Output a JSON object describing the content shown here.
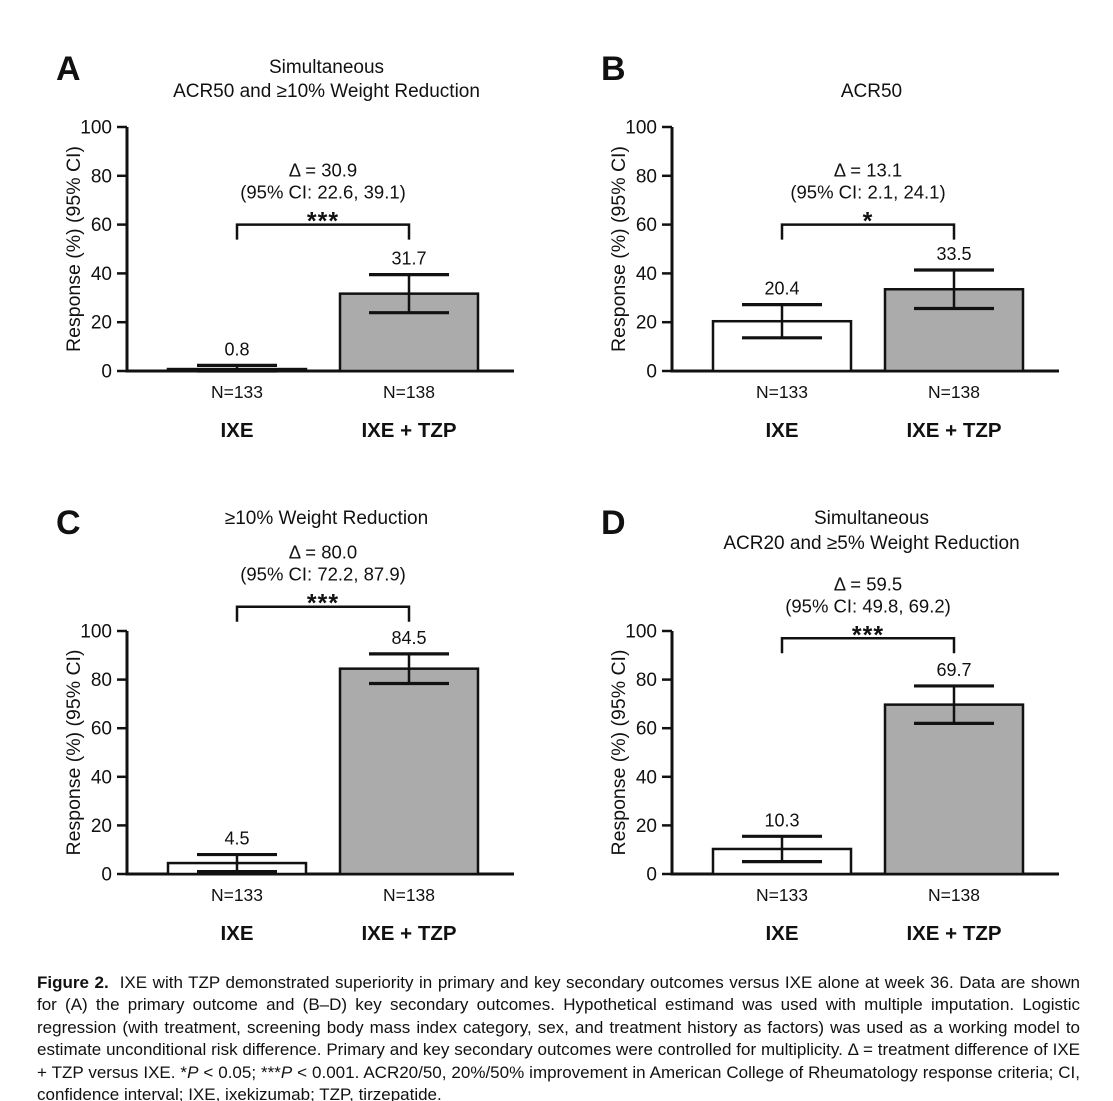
{
  "colors": {
    "ink": "#111111",
    "bar_gray": "#ababab",
    "bar_white": "#ffffff",
    "background": "#ffffff"
  },
  "chart_data": [
    {
      "panel": "A",
      "type": "bar",
      "title_lines": [
        "Simultaneous",
        "ACR50 and ≥10% Weight Reduction"
      ],
      "title_start_line": 0,
      "ylabel": "Response (%)  (95% CI)",
      "ylim": [
        0,
        100
      ],
      "yticks": [
        0,
        20,
        40,
        60,
        80,
        100
      ],
      "grid": false,
      "annotation": {
        "delta": "Δ = 30.9",
        "ci": "(95% CI: 22.6, 39.1)",
        "stars": "***",
        "bracket_level": 60
      },
      "groups": [
        {
          "label": "IXE",
          "n": "N=133",
          "value": 0.8,
          "value_label": "0.8",
          "ci_low": 0.0,
          "ci_high": 2.3,
          "fill": "white"
        },
        {
          "label": "IXE + TZP",
          "n": "N=138",
          "value": 31.7,
          "value_label": "31.7",
          "ci_low": 23.9,
          "ci_high": 39.5,
          "fill": "gray"
        }
      ]
    },
    {
      "panel": "B",
      "type": "bar",
      "title_lines": [
        "ACR50"
      ],
      "title_start_line": 1,
      "ylabel": "Response (%)  (95% CI)",
      "ylim": [
        0,
        100
      ],
      "yticks": [
        0,
        20,
        40,
        60,
        80,
        100
      ],
      "grid": false,
      "annotation": {
        "delta": "Δ = 13.1",
        "ci": "(95% CI: 2.1, 24.1)",
        "stars": "*",
        "bracket_level": 60
      },
      "groups": [
        {
          "label": "IXE",
          "n": "N=133",
          "value": 20.4,
          "value_label": "20.4",
          "ci_low": 13.6,
          "ci_high": 27.2,
          "fill": "white"
        },
        {
          "label": "IXE + TZP",
          "n": "N=138",
          "value": 33.5,
          "value_label": "33.5",
          "ci_low": 25.6,
          "ci_high": 41.4,
          "fill": "gray"
        }
      ]
    },
    {
      "panel": "C",
      "type": "bar",
      "title_lines": [
        "≥10% Weight Reduction"
      ],
      "title_start_line": 0,
      "ylabel": "Response (%)  (95% CI)",
      "ylim": [
        0,
        100
      ],
      "yticks": [
        0,
        20,
        40,
        60,
        80,
        100
      ],
      "grid": false,
      "annotation": {
        "delta": "Δ = 80.0",
        "ci": "(95% CI: 72.2, 87.9)",
        "stars": "***",
        "bracket_level": 110
      },
      "groups": [
        {
          "label": "IXE",
          "n": "N=133",
          "value": 4.5,
          "value_label": "4.5",
          "ci_low": 1.0,
          "ci_high": 8.0,
          "fill": "white"
        },
        {
          "label": "IXE + TZP",
          "n": "N=138",
          "value": 84.5,
          "value_label": "84.5",
          "ci_low": 78.4,
          "ci_high": 90.6,
          "fill": "gray"
        }
      ]
    },
    {
      "panel": "D",
      "type": "bar",
      "title_lines": [
        "Simultaneous",
        "ACR20 and ≥5% Weight Reduction"
      ],
      "title_start_line": 0,
      "ylabel": "Response (%)  (95% CI)",
      "ylim": [
        0,
        100
      ],
      "yticks": [
        0,
        20,
        40,
        60,
        80,
        100
      ],
      "grid": false,
      "annotation": {
        "delta": "Δ = 59.5",
        "ci": "(95% CI: 49.8, 69.2)",
        "stars": "***",
        "bracket_level": 97
      },
      "groups": [
        {
          "label": "IXE",
          "n": "N=133",
          "value": 10.3,
          "value_label": "10.3",
          "ci_low": 5.1,
          "ci_high": 15.5,
          "fill": "white"
        },
        {
          "label": "IXE + TZP",
          "n": "N=138",
          "value": 69.7,
          "value_label": "69.7",
          "ci_low": 62.0,
          "ci_high": 77.4,
          "fill": "gray"
        }
      ]
    }
  ],
  "caption": {
    "segments": [
      {
        "text": "Figure 2.",
        "bold": true
      },
      {
        "text": "IXE with TZP demonstrated superiority in primary and key secondary outcomes versus IXE alone at week 36. Data are shown for (A) the primary outcome and (B–D) key secondary outcomes. Hypothetical estimand was used with multiple imputation. Logistic regression (with treatment, screening body mass index category, sex, and treatment history as factors) was used as a working model to estimate unconditional risk difference. Primary and key secondary outcomes were controlled for multiplicity. Δ = treatment difference of IXE + TZP versus IXE. *"
      },
      {
        "text": "P",
        "italic": true
      },
      {
        "text": " < 0.05; ***"
      },
      {
        "text": "P",
        "italic": true
      },
      {
        "text": " < 0.001. ACR20/50, 20%/50% improvement in American College of Rheumatology response criteria; CI, confidence interval; IXE, ixekizumab; TZP, tirzepatide."
      }
    ]
  }
}
